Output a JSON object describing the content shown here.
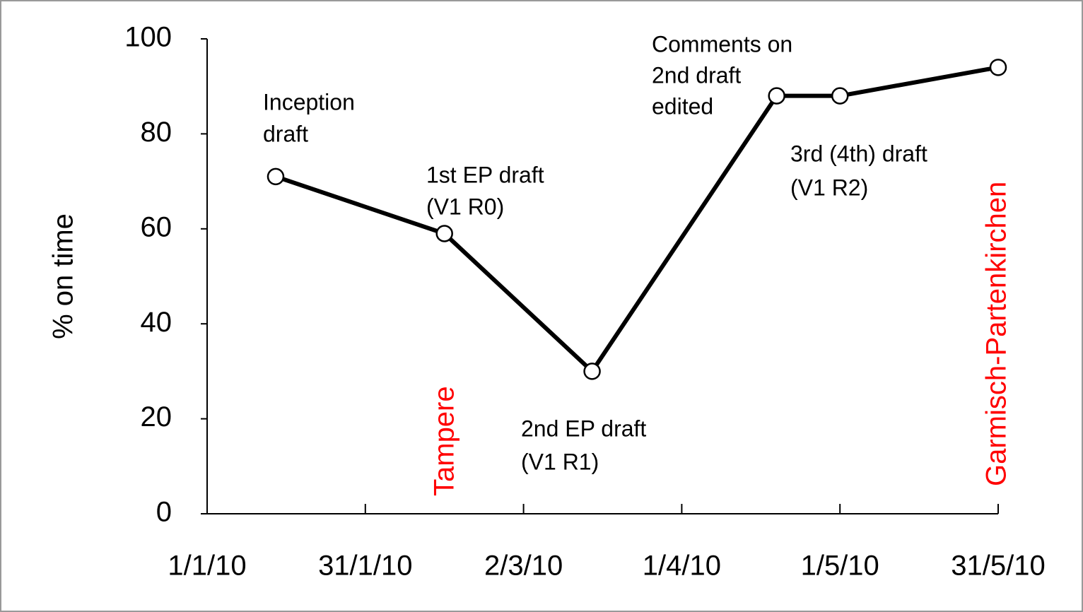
{
  "chart_data": {
    "type": "line",
    "y_label": "% on time",
    "x": [
      "2010-01-14",
      "2010-02-15",
      "2010-03-15",
      "2010-04-19",
      "2010-05-01",
      "2010-05-31"
    ],
    "values": [
      71,
      59,
      30,
      88,
      88,
      94
    ],
    "color": "#000000",
    "xlim": [
      "2010-01-01",
      "2010-05-31"
    ],
    "xticks": [
      {
        "value": "2010-01-01",
        "label": "1/1/10"
      },
      {
        "value": "2010-01-31",
        "label": "31/1/10"
      },
      {
        "value": "2010-03-02",
        "label": "2/3/10"
      },
      {
        "value": "2010-04-01",
        "label": "1/4/10"
      },
      {
        "value": "2010-05-01",
        "label": "1/5/10"
      },
      {
        "value": "2010-05-31",
        "label": "31/5/10"
      }
    ],
    "ylim": [
      0,
      100
    ],
    "yticks": [
      0,
      20,
      40,
      60,
      80,
      100
    ],
    "annotations": [
      {
        "lines": [
          "Inception",
          "draft"
        ]
      },
      {
        "lines": [
          "1st EP draft",
          "(V1 R0)"
        ]
      },
      {
        "lines": [
          "2nd EP draft",
          "(V1 R1)"
        ]
      },
      {
        "lines": [
          "Comments on",
          "2nd draft",
          "edited"
        ]
      },
      {
        "lines": [
          "3rd (4th)  draft",
          "(V1 R2)"
        ]
      }
    ],
    "events": [
      {
        "label": "Tampere",
        "color": "#ff0000"
      },
      {
        "label": "Garmisch-Partenkirchen",
        "color": "#ff0000"
      }
    ]
  }
}
